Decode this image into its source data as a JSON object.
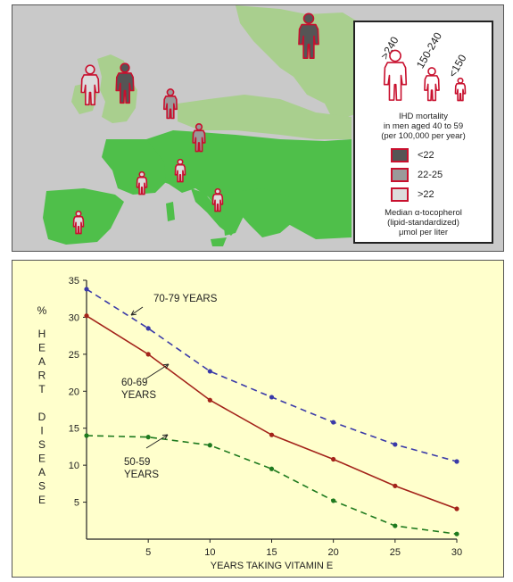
{
  "map": {
    "legend": {
      "ranges": [
        ">240",
        "150-240",
        "<150"
      ],
      "mortality_lines": [
        "IHD mortality",
        "in men aged 40 to 59",
        "(per 100,000 per year)"
      ],
      "swatches": [
        {
          "label": "<22",
          "color": "#555555"
        },
        {
          "label": "22-25",
          "color": "#9a9a9a"
        },
        {
          "label": ">22",
          "color": "#dcdcdc"
        }
      ],
      "tocopherol_lines": [
        "Median α-tocopherol",
        "(lipid-standardized)",
        "μmol per liter"
      ]
    },
    "colors": {
      "land_green": "#4fbf4a",
      "land_faded": "#a9cf8e",
      "sea": "#c9c9c9",
      "outline_red": "#c8102e"
    }
  },
  "chart_data": {
    "type": "line",
    "xlabel": "YEARS TAKING VITAMIN E",
    "ylabel_percent": "%",
    "ylabel_letters": [
      "H",
      "E",
      "A",
      "R",
      "T",
      "",
      "D",
      "I",
      "S",
      "E",
      "A",
      "S",
      "E"
    ],
    "xlim": [
      0,
      30
    ],
    "ylim": [
      0,
      35
    ],
    "xticks": [
      5,
      10,
      15,
      20,
      25,
      30
    ],
    "yticks": [
      5,
      10,
      15,
      20,
      25,
      30,
      35
    ],
    "series": [
      {
        "name": "70-79 YEARS",
        "style": "dashed",
        "color": "#3a3aa8",
        "x": [
          0,
          5,
          10,
          15,
          20,
          25,
          30
        ],
        "y": [
          33.8,
          28.5,
          22.7,
          19.2,
          15.8,
          12.8,
          10.5
        ]
      },
      {
        "name": "60-69 YEARS",
        "style": "solid",
        "color": "#a3231a",
        "x": [
          0,
          5,
          10,
          15,
          20,
          25,
          30
        ],
        "y": [
          30.2,
          25.0,
          18.8,
          14.1,
          10.8,
          7.2,
          4.1
        ]
      },
      {
        "name": "50-59 YEARS",
        "style": "dashed",
        "color": "#1e7a1e",
        "x": [
          0,
          5,
          10,
          15,
          20,
          25,
          30
        ],
        "y": [
          14.0,
          13.8,
          12.7,
          9.5,
          5.2,
          1.8,
          0.7
        ]
      }
    ],
    "annotations": [
      {
        "lines": [
          "70-79 YEARS"
        ],
        "series": 0
      },
      {
        "lines": [
          "60-69",
          "YEARS"
        ],
        "series": 1
      },
      {
        "lines": [
          "50-59",
          "YEARS"
        ],
        "series": 2
      }
    ]
  }
}
